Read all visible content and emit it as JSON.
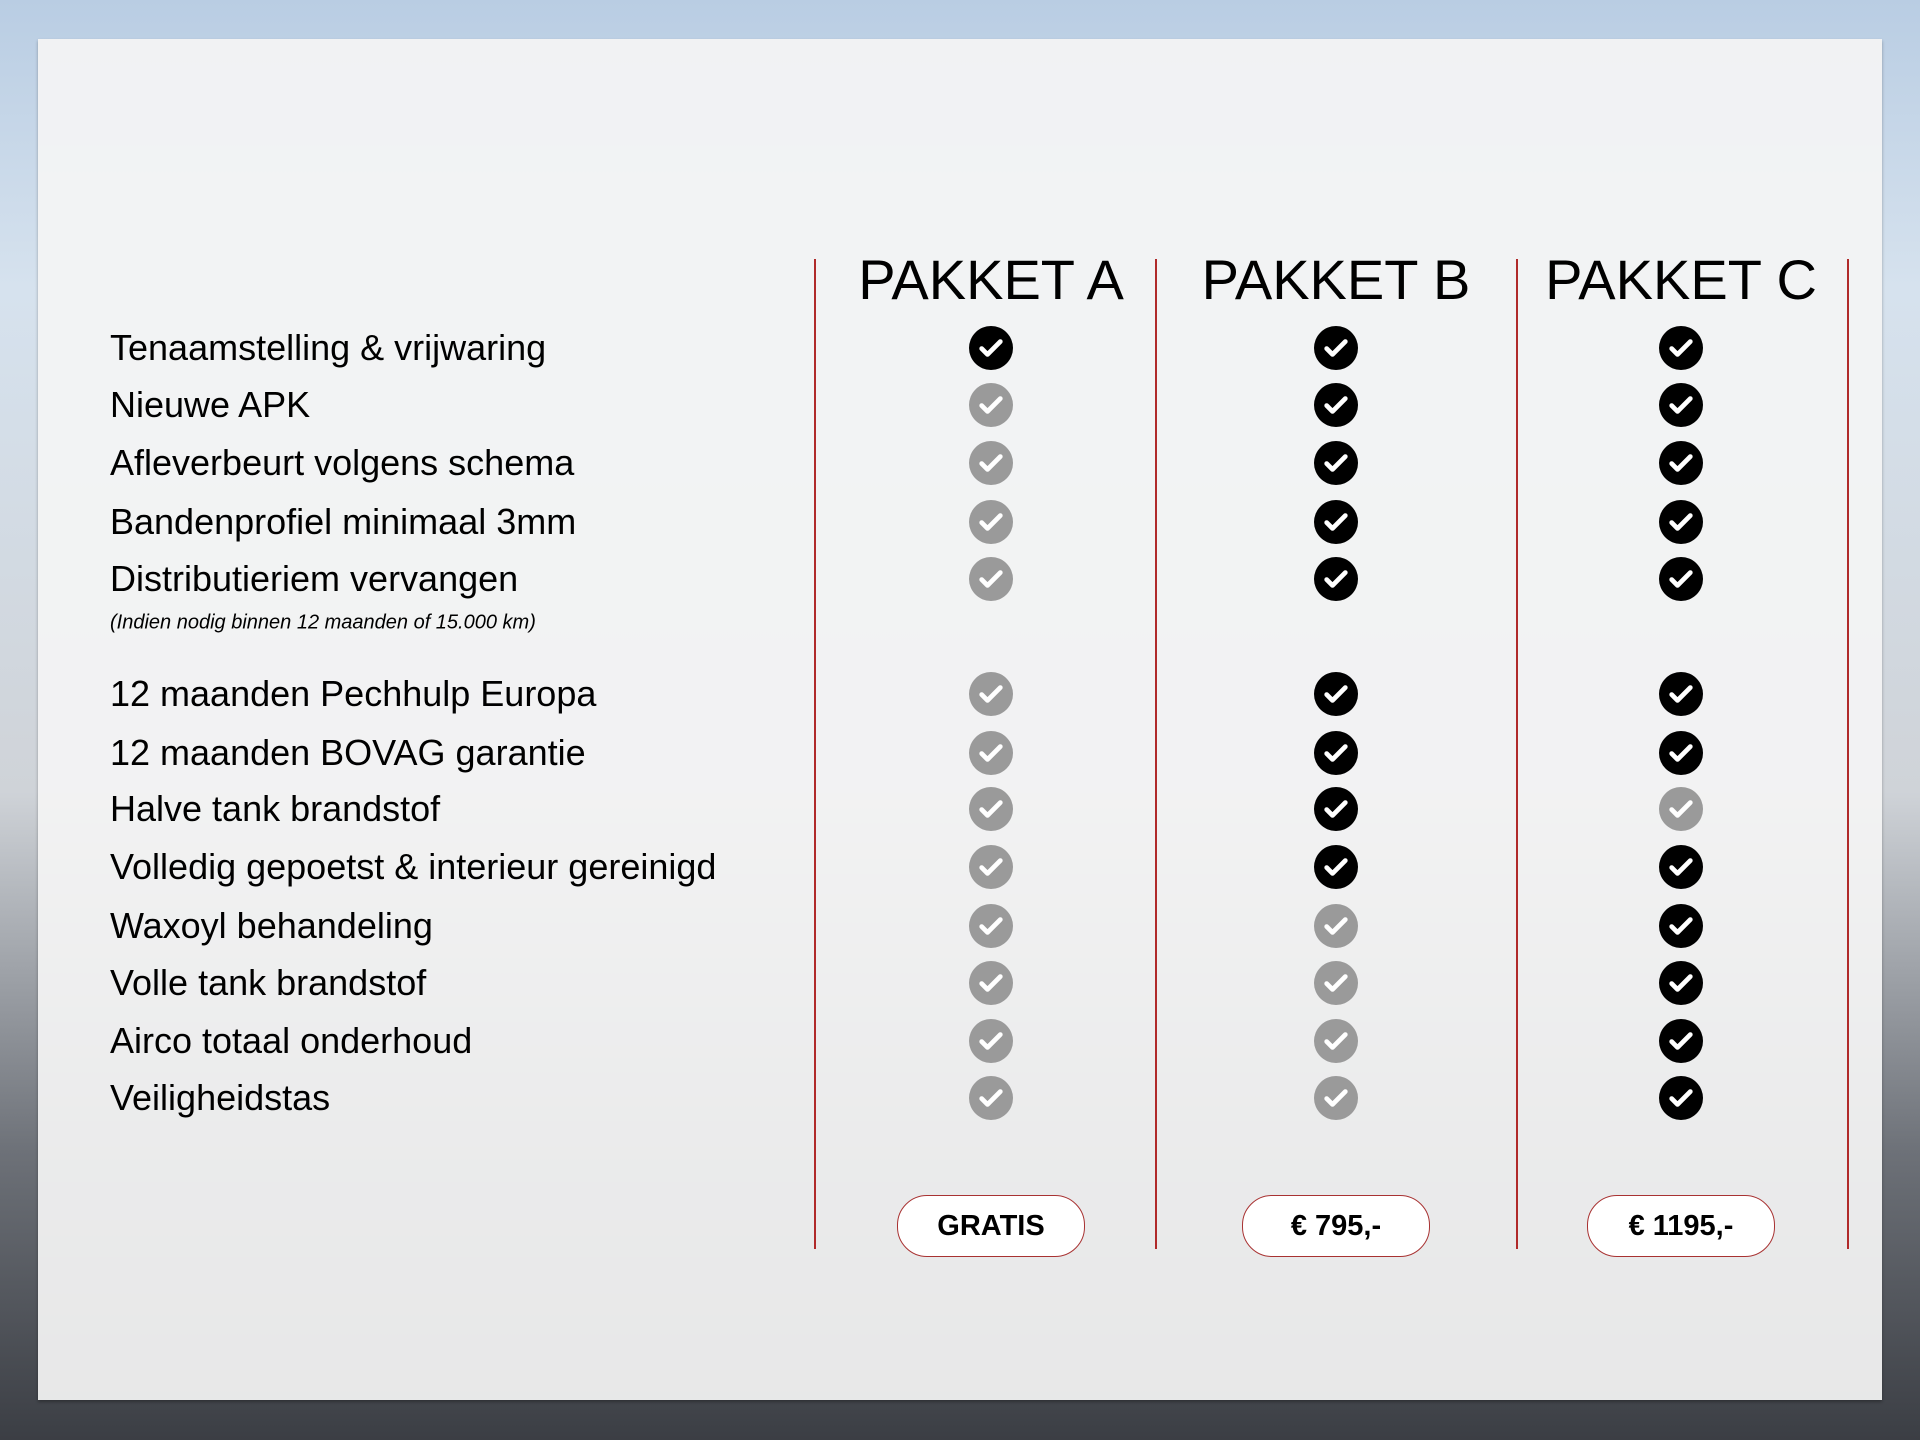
{
  "packages": [
    {
      "name": "PAKKET A",
      "price": "GRATIS"
    },
    {
      "name": "PAKKET B",
      "price": "€ 795,-"
    },
    {
      "name": "PAKKET C",
      "price": "€ 1195,-"
    }
  ],
  "colors": {
    "included": "#000000",
    "not_included": "#9a9a9a",
    "divider": "#b02a2a"
  },
  "features": [
    {
      "label": "Tenaamstelling & vrijwaring",
      "included": [
        true,
        true,
        true
      ]
    },
    {
      "label": "Nieuwe APK",
      "included": [
        false,
        true,
        true
      ]
    },
    {
      "label": "Afleverbeurt volgens schema",
      "included": [
        false,
        true,
        true
      ]
    },
    {
      "label": "Bandenprofiel minimaal 3mm",
      "included": [
        false,
        true,
        true
      ]
    },
    {
      "label": "Distributieriem vervangen",
      "included": [
        false,
        true,
        true
      ],
      "note": "(Indien nodig binnen 12 maanden of 15.000 km)"
    },
    {
      "label": "12 maanden Pechhulp Europa",
      "included": [
        false,
        true,
        true
      ]
    },
    {
      "label": "12 maanden BOVAG garantie",
      "included": [
        false,
        true,
        true
      ]
    },
    {
      "label": "Halve tank brandstof",
      "included": [
        false,
        true,
        false
      ]
    },
    {
      "label": "Volledig gepoetst & interieur gereinigd",
      "included": [
        false,
        true,
        true
      ]
    },
    {
      "label": "Waxoyl behandeling",
      "included": [
        false,
        false,
        true
      ]
    },
    {
      "label": "Volle tank brandstof",
      "included": [
        false,
        false,
        true
      ]
    },
    {
      "label": "Airco totaal onderhoud",
      "included": [
        false,
        false,
        true
      ]
    },
    {
      "label": "Veiligheidstas",
      "included": [
        false,
        false,
        true
      ]
    }
  ]
}
